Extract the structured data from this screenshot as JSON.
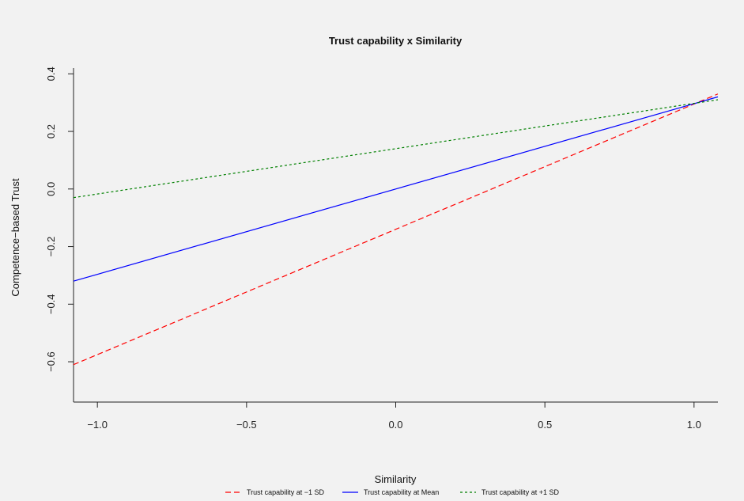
{
  "chart_data": {
    "type": "line",
    "title": "Trust capability x Similarity",
    "xlabel": "Similarity",
    "ylabel": "Competence−based Trust",
    "xlim": [
      -1.08,
      1.08
    ],
    "ylim": [
      -0.74,
      0.42
    ],
    "x_ticks": [
      -1.0,
      -0.5,
      0.0,
      0.5,
      1.0
    ],
    "x_tick_labels": [
      "−1.0",
      "−0.5",
      "0.0",
      "0.5",
      "1.0"
    ],
    "y_ticks": [
      -0.6,
      -0.4,
      -0.2,
      0.0,
      0.2,
      0.4
    ],
    "y_tick_labels": [
      "−0.6",
      "−0.4",
      "−0.2",
      "0.0",
      "0.2",
      "0.4"
    ],
    "grid": false,
    "legend_position": "bottom",
    "series": [
      {
        "name": "Trust capability at −1 SD",
        "color": "#ff0000",
        "dash": "dashed",
        "x": [
          -1.08,
          1.08
        ],
        "y": [
          -0.61,
          0.33
        ]
      },
      {
        "name": "Trust capability at Mean",
        "color": "#0000ff",
        "dash": "solid",
        "x": [
          -1.08,
          1.08
        ],
        "y": [
          -0.32,
          0.32
        ]
      },
      {
        "name": "Trust capability at +1 SD",
        "color": "#008000",
        "dash": "dotted",
        "x": [
          -1.08,
          1.08
        ],
        "y": [
          -0.03,
          0.31
        ]
      }
    ]
  }
}
